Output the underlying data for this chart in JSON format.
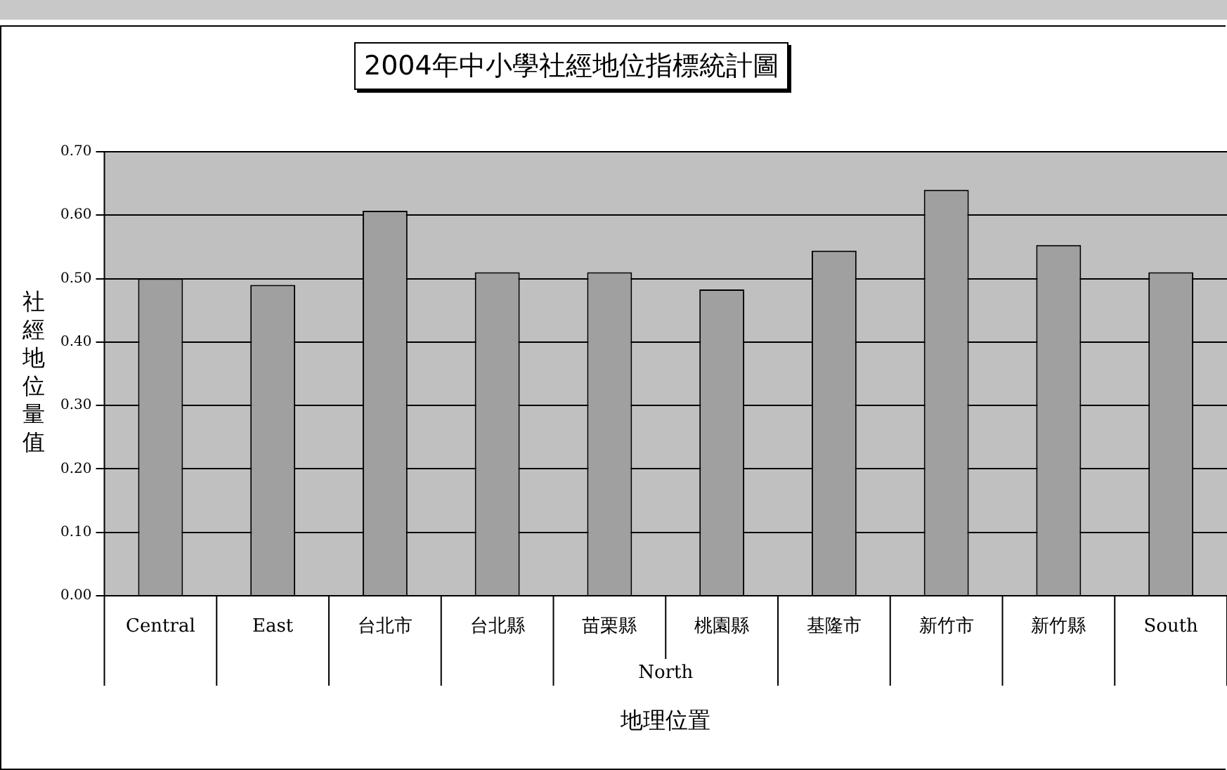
{
  "chart_data": {
    "type": "bar",
    "title": "2004年中小學社經地位指標統計圖",
    "xlabel": "地理位置",
    "ylabel": "社經地位量值",
    "categories": [
      "Central",
      "East",
      "台北市",
      "台北縣",
      "苗栗縣",
      "桃園縣",
      "基隆市",
      "新竹市",
      "新竹縣",
      "South"
    ],
    "values": [
      0.5,
      0.49,
      0.607,
      0.51,
      0.51,
      0.483,
      0.544,
      0.64,
      0.553,
      0.51
    ],
    "color": "#a0a0a0",
    "ylim": [
      0,
      0.7
    ],
    "yticks": [
      {
        "value": 0,
        "label": "0.00"
      },
      {
        "value": 0.1,
        "label": "0.10"
      },
      {
        "value": 0.2,
        "label": "0.20"
      },
      {
        "value": 0.3,
        "label": "0.30"
      },
      {
        "value": 0.4,
        "label": "0.40"
      },
      {
        "value": 0.5,
        "label": "0.50"
      },
      {
        "value": 0.6,
        "label": "0.60"
      },
      {
        "value": 0.7,
        "label": "0.70"
      }
    ],
    "grid": "y",
    "legend": false,
    "annotations": [
      "North"
    ]
  }
}
